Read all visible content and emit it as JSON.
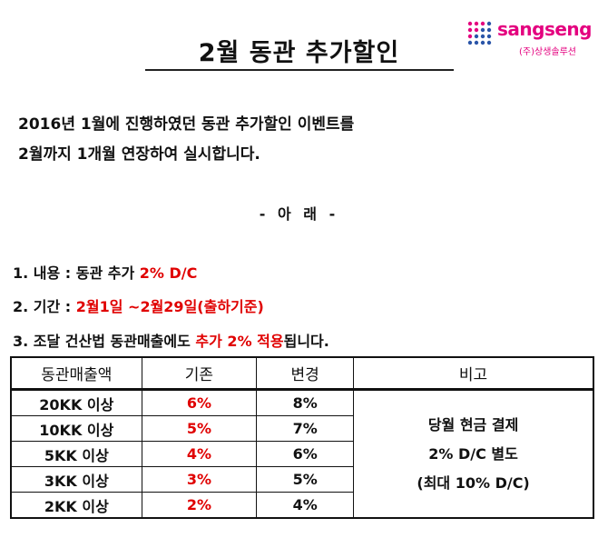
{
  "title": "2월 동관 추가할인",
  "logo": {
    "name": "sangseng",
    "subtitle": "(주)상생솔루션"
  },
  "intro": {
    "line1": "2016년 1월에 진행하였던 동관 추가할인 이벤트를",
    "line2": "2월까지 1개월 연장하여 실시합니다."
  },
  "section_marker": "- 아 래 -",
  "items": {
    "one": {
      "prefix": "1. 내용 : 동관 추가 ",
      "highlight": "2% D/C"
    },
    "two": {
      "prefix": "2. 기간 : ",
      "highlight": "2월1일 ~2월29일(출하기준)"
    },
    "three": {
      "prefix": "3. 조달 건산법 동관매출에도 ",
      "highlight": "추가 2% 적용",
      "suffix": "됩니다."
    }
  },
  "table": {
    "headers": [
      "동관매출액",
      "기존",
      "변경",
      "비고"
    ],
    "rows": [
      {
        "amount": "20KK 이상",
        "before": "6%",
        "after": "8%"
      },
      {
        "amount": "10KK 이상",
        "before": "5%",
        "after": "7%"
      },
      {
        "amount": "5KK 이상",
        "before": "4%",
        "after": "6%"
      },
      {
        "amount": "3KK 이상",
        "before": "3%",
        "after": "5%"
      },
      {
        "amount": "2KK 이상",
        "before": "2%",
        "after": "4%"
      }
    ],
    "note": [
      "당월 현금 결제",
      "2% D/C 별도",
      "(최대 10% D/C)"
    ]
  },
  "colors": {
    "highlight": "#e00000",
    "brand": "#e4007f"
  }
}
